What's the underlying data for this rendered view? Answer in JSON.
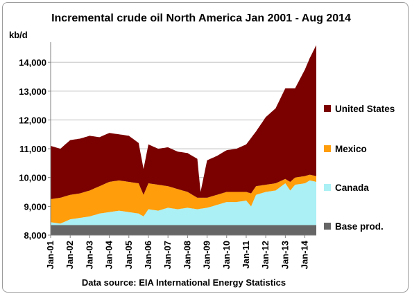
{
  "chart_data": {
    "type": "area",
    "title": "Incremental crude oil North America  Jan 2001 - Aug 2014",
    "ylabel": "kb/d",
    "xlabel": "",
    "source": "Data source: EIA International Energy Statistics",
    "ylim": [
      8000,
      14700
    ],
    "yticks": [
      8000,
      9000,
      10000,
      11000,
      12000,
      13000,
      14000
    ],
    "ytick_labels": [
      "8,000",
      "9,000",
      "10,000",
      "11,000",
      "12,000",
      "13,000",
      "14,000"
    ],
    "xtick_labels": [
      "Jan-01",
      "Jan-02",
      "Jan-03",
      "Jan-04",
      "Jan-05",
      "Jan-06",
      "Jan-07",
      "Jan-08",
      "Jan-09",
      "Jan-10",
      "Jan-11",
      "Jan-12",
      "Jan-13",
      "Jan-14"
    ],
    "x_start": "2001-01",
    "x_end": "2014-08",
    "stacked": true,
    "grid": true,
    "legend_position": "right",
    "series": [
      {
        "name": "Base prod.",
        "color": "#666666",
        "x": [
          "2001-01",
          "2014-08"
        ],
        "values": [
          8350,
          8350
        ]
      },
      {
        "name": "Canada",
        "color": "#aaf0f4",
        "x": [
          "2001-01",
          "2001-07",
          "2002-01",
          "2002-07",
          "2003-01",
          "2003-07",
          "2004-01",
          "2004-07",
          "2005-01",
          "2005-07",
          "2005-10",
          "2006-01",
          "2006-07",
          "2007-01",
          "2007-07",
          "2008-01",
          "2008-07",
          "2009-01",
          "2009-07",
          "2010-01",
          "2010-07",
          "2011-01",
          "2011-04",
          "2011-07",
          "2012-01",
          "2012-07",
          "2013-01",
          "2013-04",
          "2013-07",
          "2014-01",
          "2014-04",
          "2014-08"
        ],
        "values": [
          8450,
          8400,
          8550,
          8600,
          8650,
          8750,
          8800,
          8850,
          8800,
          8750,
          8650,
          8900,
          8850,
          8950,
          8900,
          8950,
          8900,
          8950,
          9050,
          9150,
          9150,
          9200,
          9000,
          9400,
          9500,
          9550,
          9800,
          9550,
          9750,
          9800,
          9900,
          9850
        ]
      },
      {
        "name": "Mexico",
        "color": "#ff9d0a",
        "x": [
          "2001-01",
          "2001-07",
          "2002-01",
          "2002-07",
          "2003-01",
          "2003-07",
          "2004-01",
          "2004-07",
          "2005-01",
          "2005-07",
          "2005-10",
          "2006-01",
          "2006-07",
          "2007-01",
          "2007-07",
          "2008-01",
          "2008-07",
          "2009-01",
          "2009-07",
          "2010-01",
          "2010-07",
          "2011-01",
          "2011-04",
          "2011-07",
          "2012-01",
          "2012-07",
          "2013-01",
          "2013-04",
          "2013-07",
          "2014-01",
          "2014-04",
          "2014-08"
        ],
        "values": [
          9250,
          9300,
          9400,
          9450,
          9550,
          9700,
          9850,
          9900,
          9850,
          9800,
          9400,
          9800,
          9750,
          9700,
          9600,
          9500,
          9300,
          9300,
          9400,
          9500,
          9500,
          9500,
          9450,
          9700,
          9750,
          9800,
          9950,
          9850,
          10000,
          10050,
          10100,
          10050
        ]
      },
      {
        "name": "United States",
        "color": "#7b0000",
        "x": [
          "2001-01",
          "2001-07",
          "2002-01",
          "2002-07",
          "2003-01",
          "2003-07",
          "2004-01",
          "2004-07",
          "2005-01",
          "2005-07",
          "2005-10",
          "2006-01",
          "2006-07",
          "2007-01",
          "2007-07",
          "2008-01",
          "2008-07",
          "2008-09",
          "2009-01",
          "2009-07",
          "2010-01",
          "2010-07",
          "2011-01",
          "2011-07",
          "2012-01",
          "2012-07",
          "2013-01",
          "2013-07",
          "2014-01",
          "2014-04",
          "2014-08"
        ],
        "values": [
          11100,
          11000,
          11300,
          11350,
          11450,
          11400,
          11550,
          11500,
          11450,
          11200,
          10300,
          11150,
          11000,
          11050,
          10900,
          10850,
          10650,
          9500,
          10600,
          10750,
          10950,
          11000,
          11150,
          11600,
          12100,
          12400,
          13100,
          13100,
          13750,
          14150,
          14600
        ]
      }
    ]
  }
}
